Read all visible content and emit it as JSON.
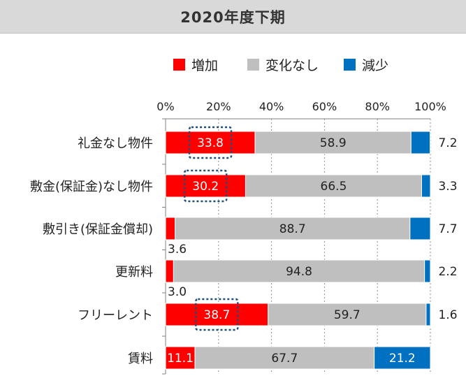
{
  "header": {
    "title": "2020年度下期"
  },
  "chart_data": {
    "type": "bar",
    "orientation": "horizontal",
    "stacked": true,
    "title": "",
    "xlabel": "",
    "ylabel": "",
    "xlim": [
      0,
      100
    ],
    "x_ticks": [
      "0%",
      "20%",
      "40%",
      "60%",
      "80%",
      "100%"
    ],
    "grid": true,
    "legend_position": "top",
    "categories": [
      "礼金なし物件",
      "敷金(保証金)なし物件",
      "敷引き(保証金償却)",
      "更新料",
      "フリーレント",
      "賃料"
    ],
    "series": [
      {
        "name": "増加",
        "color": "#ff0000",
        "values": [
          33.8,
          30.2,
          3.6,
          3.0,
          38.7,
          11.1
        ]
      },
      {
        "name": "変化なし",
        "color": "#bfbfbf",
        "values": [
          58.9,
          66.5,
          88.7,
          94.8,
          59.7,
          67.7
        ]
      },
      {
        "name": "減少",
        "color": "#0070c0",
        "values": [
          7.2,
          3.3,
          7.7,
          2.2,
          1.6,
          21.2
        ]
      }
    ],
    "data_labels": [
      [
        "33.8",
        "58.9",
        "7.2"
      ],
      [
        "30.2",
        "66.5",
        "3.3"
      ],
      [
        "3.6",
        "88.7",
        "7.7"
      ],
      [
        "3.0",
        "94.8",
        "2.2"
      ],
      [
        "38.7",
        "59.7",
        "1.6"
      ],
      [
        "11.1",
        "67.7",
        "21.2"
      ]
    ],
    "highlighted_categories": [
      "礼金なし物件",
      "敷金(保証金)なし物件",
      "フリーレント"
    ]
  }
}
